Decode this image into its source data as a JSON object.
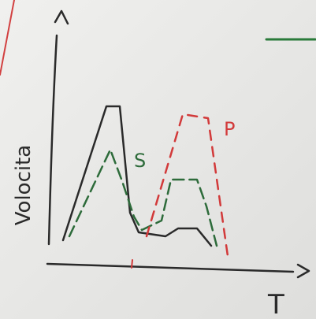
{
  "board": {
    "y_label": "Volocita",
    "curve_labels": [
      "S",
      "P"
    ],
    "x_label": "T"
  }
}
